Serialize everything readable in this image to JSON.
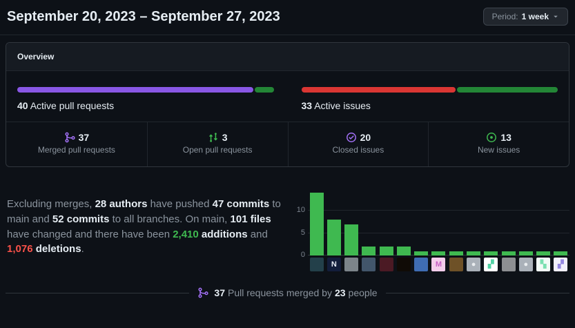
{
  "header": {
    "title": "September 20, 2023 – September 27, 2023",
    "period_button": {
      "prefix": "Period:",
      "value": "1 week"
    }
  },
  "overview": {
    "title": "Overview",
    "pull_requests_bar": {
      "value": "40",
      "label": "Active pull requests",
      "segments": [
        {
          "name": "merged",
          "color": "#8957e5",
          "percent": 92.5
        },
        {
          "name": "open",
          "color": "#238636",
          "percent": 7.5
        }
      ]
    },
    "issues_bar": {
      "value": "33",
      "label": "Active issues",
      "segments": [
        {
          "name": "closed",
          "color": "#da3633",
          "percent": 60.6
        },
        {
          "name": "new",
          "color": "#238636",
          "percent": 39.4
        }
      ]
    },
    "stats": [
      {
        "icon": "git-merge-icon",
        "icon_color": "#a371f7",
        "value": "37",
        "label": "Merged pull requests"
      },
      {
        "icon": "git-pull-request-icon",
        "icon_color": "#3fb950",
        "value": "3",
        "label": "Open pull requests"
      },
      {
        "icon": "issue-closed-icon",
        "icon_color": "#a371f7",
        "value": "20",
        "label": "Closed issues"
      },
      {
        "icon": "issue-opened-icon",
        "icon_color": "#3fb950",
        "value": "13",
        "label": "New issues"
      }
    ]
  },
  "summary": {
    "segments": [
      {
        "text": "Excluding merges, "
      },
      {
        "text": "28 authors",
        "bold": true
      },
      {
        "text": " have pushed "
      },
      {
        "text": "47 commits",
        "bold": true
      },
      {
        "text": " to main and "
      },
      {
        "text": "52 commits",
        "bold": true
      },
      {
        "text": " to all branches. On main, "
      },
      {
        "text": "101 files",
        "bold": true
      },
      {
        "text": " have changed and there have been "
      },
      {
        "text": "2,410",
        "bold": true,
        "color": "#3fb950"
      },
      {
        "text": " "
      },
      {
        "text": "additions",
        "bold": true
      },
      {
        "text": " and "
      },
      {
        "text": "1,076",
        "bold": true,
        "color": "#f85149"
      },
      {
        "text": " "
      },
      {
        "text": "deletions",
        "bold": true
      },
      {
        "text": "."
      }
    ]
  },
  "chart_data": {
    "type": "bar",
    "title": "",
    "xlabel": "",
    "ylabel": "",
    "categories": [
      "author-1",
      "author-2",
      "author-3",
      "author-4",
      "author-5",
      "author-6",
      "author-7",
      "author-8",
      "author-9",
      "author-10",
      "author-11",
      "author-12",
      "author-13",
      "author-14",
      "author-15"
    ],
    "values": [
      14,
      8,
      7,
      2,
      2,
      2,
      1,
      1,
      1,
      1,
      1,
      1,
      1,
      1,
      1
    ],
    "yticks": [
      0,
      5,
      10
    ],
    "ylim": [
      0,
      15
    ],
    "grid": true,
    "bar_color": "#3fb950",
    "avatars": [
      {
        "name": "author-1-avatar",
        "bg": "#23404a",
        "glyph": "",
        "fg": ""
      },
      {
        "name": "author-2-avatar",
        "bg": "#131d3b",
        "glyph": "N",
        "fg": "#e7ebf5"
      },
      {
        "name": "author-3-avatar",
        "bg": "#7c848a",
        "glyph": "",
        "fg": ""
      },
      {
        "name": "author-4-avatar",
        "bg": "#42566b",
        "glyph": "",
        "fg": ""
      },
      {
        "name": "author-5-avatar",
        "bg": "#4b1a24",
        "glyph": "",
        "fg": ""
      },
      {
        "name": "author-6-avatar",
        "bg": "#100b06",
        "glyph": "",
        "fg": ""
      },
      {
        "name": "author-7-avatar",
        "bg": "#3f6db3",
        "glyph": "",
        "fg": ""
      },
      {
        "name": "author-8-avatar",
        "bg": "#f3cdeb",
        "glyph": "M",
        "fg": "#c65fc4"
      },
      {
        "name": "author-9-avatar",
        "bg": "#6e5127",
        "glyph": "",
        "fg": ""
      },
      {
        "name": "author-10-avatar",
        "bg": "#aab1b9",
        "glyph": "●",
        "fg": "#e9ecef"
      },
      {
        "name": "author-11-avatar",
        "bg": "#ffffff",
        "glyph": "▞",
        "fg": "#52d1a4"
      },
      {
        "name": "author-12-avatar",
        "bg": "#8d8f92",
        "glyph": "",
        "fg": ""
      },
      {
        "name": "author-13-avatar",
        "bg": "#aab1b9",
        "glyph": "●",
        "fg": "#e9ecef"
      },
      {
        "name": "author-14-avatar",
        "bg": "#f2fbf6",
        "glyph": "▚",
        "fg": "#7be0b1"
      },
      {
        "name": "author-15-avatar",
        "bg": "#f1effb",
        "glyph": "▞",
        "fg": "#9487e0"
      }
    ]
  },
  "footer": {
    "icon": "git-merge-icon",
    "icon_color": "#a371f7",
    "segments": [
      {
        "text": "37",
        "bold": true
      },
      {
        "text": " Pull requests merged by "
      },
      {
        "text": "23",
        "bold": true
      },
      {
        "text": " people"
      }
    ]
  }
}
